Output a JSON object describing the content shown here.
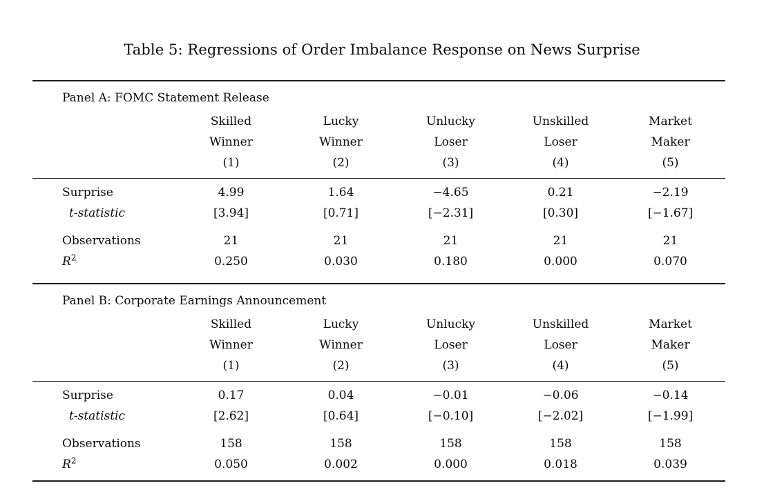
{
  "title": "Table 5: Regressions of Order Imbalance Response on News Surprise",
  "panels": [
    {
      "label": "Panel A: FOMC Statement Release",
      "columns": [
        {
          "line1": "Skilled",
          "line2": "Winner",
          "num": "(1)"
        },
        {
          "line1": "Lucky",
          "line2": "Winner",
          "num": "(2)"
        },
        {
          "line1": "Unlucky",
          "line2": "Loser",
          "num": "(3)"
        },
        {
          "line1": "Unskilled",
          "line2": "Loser",
          "num": "(4)"
        },
        {
          "line1": "Market",
          "line2": "Maker",
          "num": "(5)"
        }
      ],
      "rows": {
        "surprise": {
          "label": "Surprise",
          "values": [
            "4.99",
            "1.64",
            "−4.65",
            "0.21",
            "−2.19"
          ]
        },
        "tstat": {
          "label": "t-statistic",
          "values": [
            "[3.94]",
            "[0.71]",
            "[−2.31]",
            "[0.30]",
            "[−1.67]"
          ]
        },
        "observations": {
          "label": "Observations",
          "values": [
            "21",
            "21",
            "21",
            "21",
            "21"
          ]
        },
        "r2": {
          "label_base": "R",
          "label_sup": "2",
          "values": [
            "0.250",
            "0.030",
            "0.180",
            "0.000",
            "0.070"
          ]
        }
      }
    },
    {
      "label": "Panel B: Corporate Earnings Announcement",
      "columns": [
        {
          "line1": "Skilled",
          "line2": "Winner",
          "num": "(1)"
        },
        {
          "line1": "Lucky",
          "line2": "Winner",
          "num": "(2)"
        },
        {
          "line1": "Unlucky",
          "line2": "Loser",
          "num": "(3)"
        },
        {
          "line1": "Unskilled",
          "line2": "Loser",
          "num": "(4)"
        },
        {
          "line1": "Market",
          "line2": "Maker",
          "num": "(5)"
        }
      ],
      "rows": {
        "surprise": {
          "label": "Surprise",
          "values": [
            "0.17",
            "0.04",
            "−0.01",
            "−0.06",
            "−0.14"
          ]
        },
        "tstat": {
          "label": "t-statistic",
          "values": [
            "[2.62]",
            "[0.64]",
            "[−0.10]",
            "[−2.02]",
            "[−1.99]"
          ]
        },
        "observations": {
          "label": "Observations",
          "values": [
            "158",
            "158",
            "158",
            "158",
            "158"
          ]
        },
        "r2": {
          "label_base": "R",
          "label_sup": "2",
          "values": [
            "0.050",
            "0.002",
            "0.000",
            "0.018",
            "0.039"
          ]
        }
      }
    }
  ]
}
